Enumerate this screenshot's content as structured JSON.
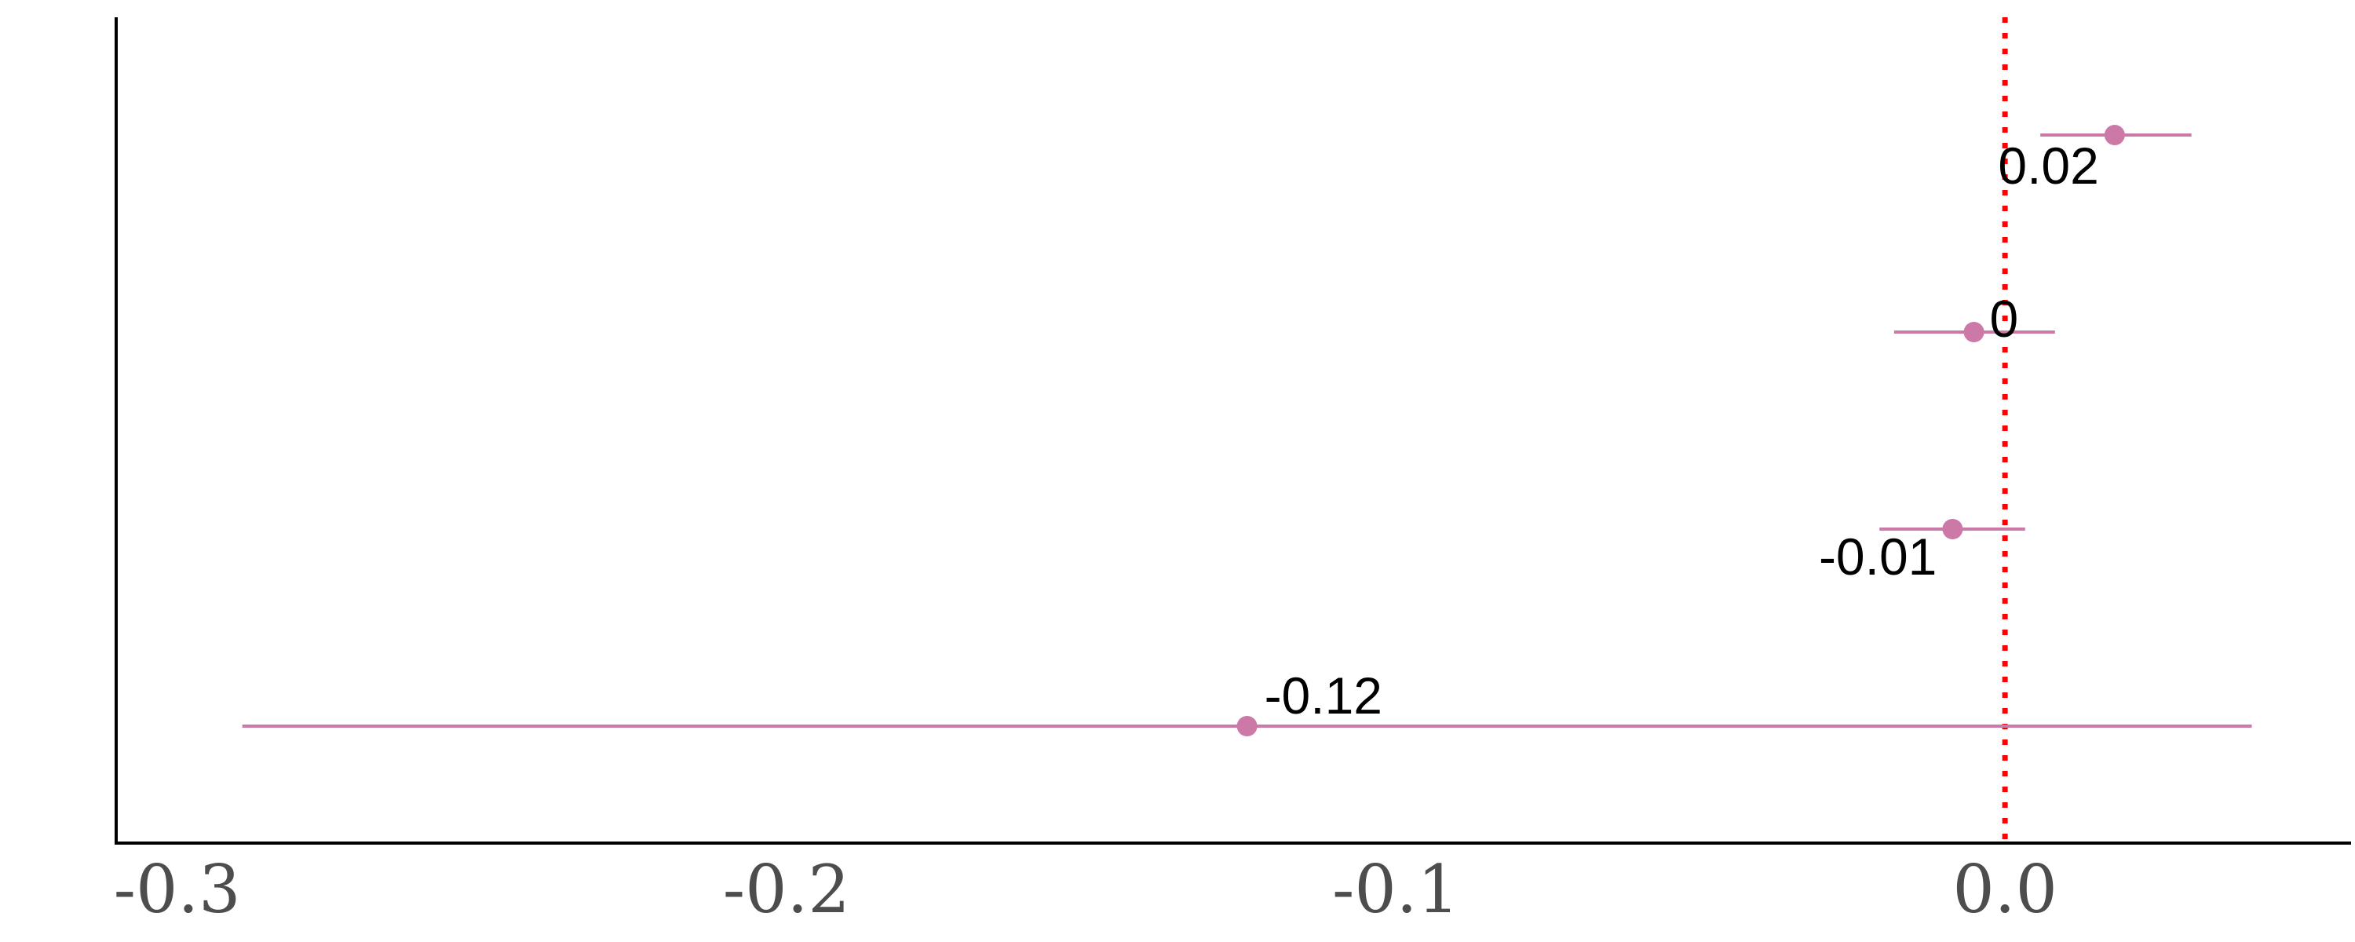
{
  "chart_data": {
    "type": "scatter",
    "title": "",
    "xlabel": "",
    "ylabel": "",
    "xlim": [
      -0.31,
      0.0568
    ],
    "x_ticks": [
      -0.3,
      -0.2,
      -0.1,
      0.0
    ],
    "x_tick_labels": [
      "-0.3",
      "-0.2",
      "-0.1",
      "0.0"
    ],
    "reference_line": {
      "x": 0,
      "style": "dotted",
      "color": "#ff0000"
    },
    "grid": false,
    "legend": "none",
    "marker_color": "#cc79a7",
    "series": [
      {
        "points": [
          {
            "row": 1,
            "estimate": 0.018,
            "lower": 0.0058,
            "upper": 0.0306,
            "label": "0.02"
          },
          {
            "row": 2,
            "estimate": -0.0051,
            "lower": -0.0182,
            "upper": 0.0082,
            "label": "0"
          },
          {
            "row": 3,
            "estimate": -0.0086,
            "lower": -0.0206,
            "upper": 0.0033,
            "label": "-0.01"
          },
          {
            "row": 4,
            "estimate": -0.1244,
            "lower": -0.2893,
            "upper": 0.0405,
            "label": "-0.12"
          }
        ]
      }
    ]
  }
}
